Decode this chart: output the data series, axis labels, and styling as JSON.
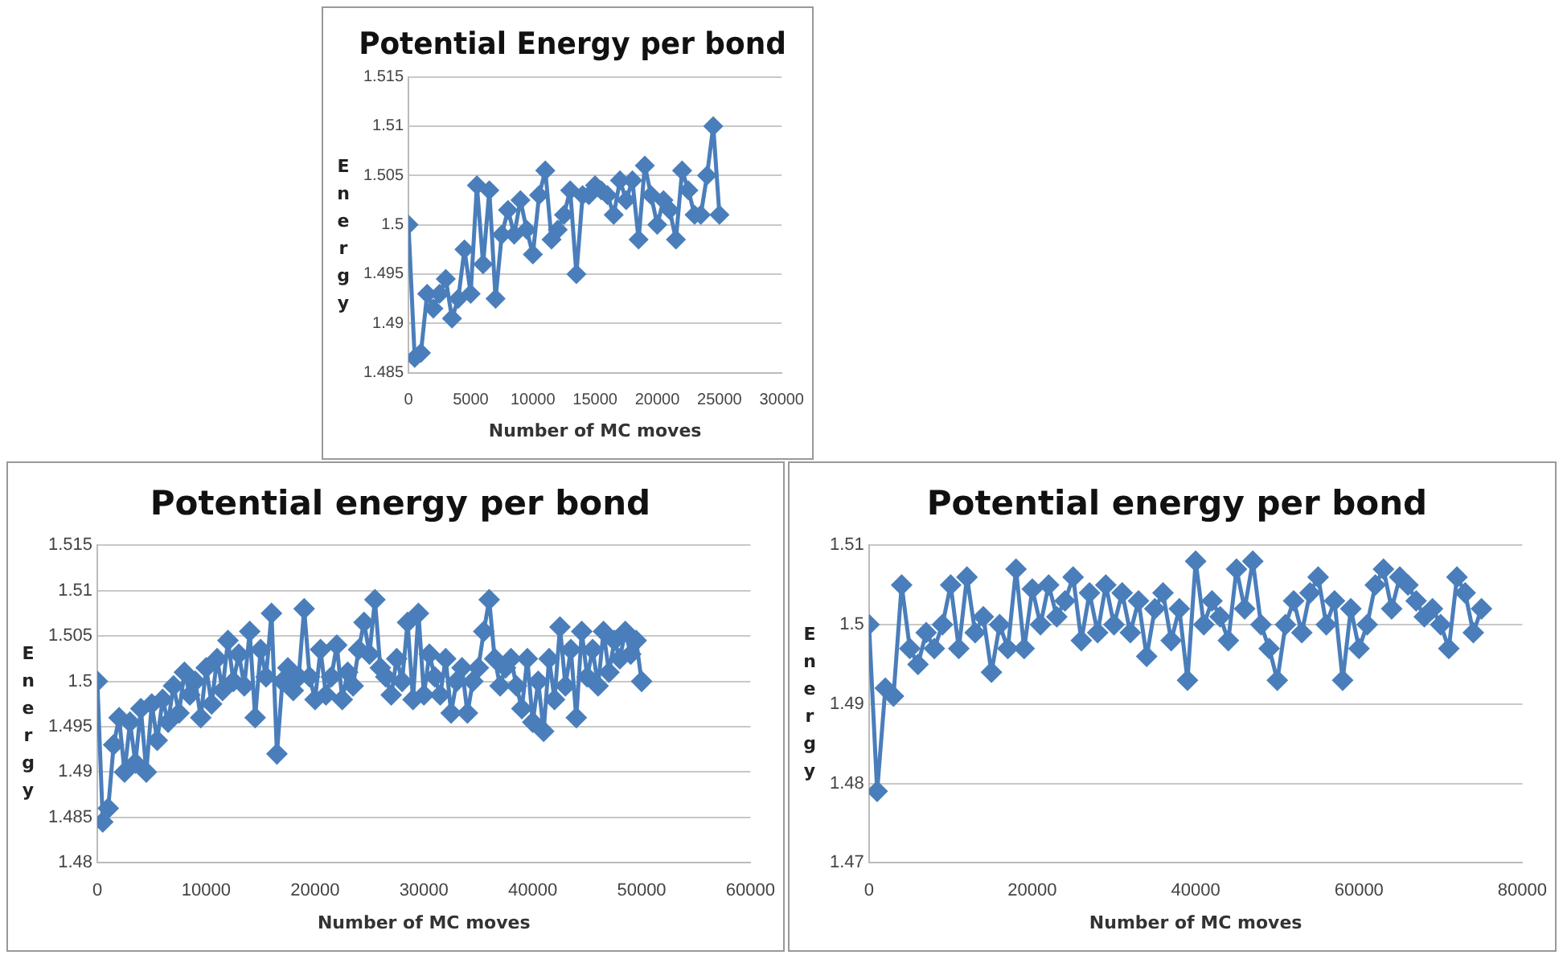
{
  "chart_data": [
    {
      "type": "line",
      "title": "Potential Energy per bond",
      "xlabel": "Number of MC moves",
      "ylabel": "Energy",
      "marker": "diamond",
      "grid": "y",
      "legend": false,
      "xlim": [
        0,
        30000
      ],
      "xticks": [
        0,
        5000,
        10000,
        15000,
        20000,
        25000,
        30000
      ],
      "ylim": [
        1.485,
        1.515
      ],
      "yticks": [
        1.485,
        1.49,
        1.495,
        1.5,
        1.505,
        1.51,
        1.515
      ],
      "x": [
        0,
        500,
        1000,
        1500,
        2000,
        2500,
        3000,
        3500,
        4000,
        4500,
        5000,
        5500,
        6000,
        6500,
        7000,
        7500,
        8000,
        8500,
        9000,
        9500,
        10000,
        10500,
        11000,
        11500,
        12000,
        12500,
        13000,
        13500,
        14000,
        14500,
        15000,
        15500,
        16000,
        16500,
        17000,
        17500,
        18000,
        18500,
        19000,
        19500,
        20000,
        20500,
        21000,
        21500,
        22000,
        22500,
        23000,
        23500,
        24000,
        24500,
        25000
      ],
      "series": [
        {
          "color": "#4a7ebb",
          "values": [
            1.5,
            1.4865,
            1.487,
            1.493,
            1.4915,
            1.493,
            1.4945,
            1.4905,
            1.4925,
            1.4975,
            1.493,
            1.504,
            1.496,
            1.5035,
            1.4925,
            1.499,
            1.5015,
            1.499,
            1.5025,
            1.4995,
            1.497,
            1.503,
            1.5055,
            1.4985,
            1.4995,
            1.501,
            1.5035,
            1.495,
            1.503,
            1.503,
            1.504,
            1.5035,
            1.503,
            1.501,
            1.5045,
            1.5025,
            1.5045,
            1.4985,
            1.506,
            1.503,
            1.5,
            1.5025,
            1.5015,
            1.4985,
            1.5055,
            1.5035,
            1.501,
            1.501,
            1.505,
            1.51,
            1.501
          ]
        }
      ]
    },
    {
      "type": "line",
      "title": "Potential energy per bond",
      "xlabel": "Number of MC moves",
      "ylabel": "Energy",
      "marker": "diamond",
      "grid": "y",
      "legend": false,
      "xlim": [
        0,
        60000
      ],
      "xticks": [
        0,
        10000,
        20000,
        30000,
        40000,
        50000,
        60000
      ],
      "ylim": [
        1.48,
        1.515
      ],
      "yticks": [
        1.48,
        1.485,
        1.49,
        1.495,
        1.5,
        1.505,
        1.51,
        1.515
      ],
      "x": [
        0,
        500,
        1000,
        1500,
        2000,
        2500,
        3000,
        3500,
        4000,
        4500,
        5000,
        5500,
        6000,
        6500,
        7000,
        7500,
        8000,
        8500,
        9000,
        9500,
        10000,
        10500,
        11000,
        11500,
        12000,
        12500,
        13000,
        13500,
        14000,
        14500,
        15000,
        15500,
        16000,
        16500,
        17000,
        17500,
        18000,
        18500,
        19000,
        19500,
        20000,
        20500,
        21000,
        21500,
        22000,
        22500,
        23000,
        23500,
        24000,
        24500,
        25000,
        25500,
        26000,
        26500,
        27000,
        27500,
        28000,
        28500,
        29000,
        29500,
        30000,
        30500,
        31000,
        31500,
        32000,
        32500,
        33000,
        33500,
        34000,
        34500,
        35000,
        35500,
        36000,
        36500,
        37000,
        37500,
        38000,
        38500,
        39000,
        39500,
        40000,
        40500,
        41000,
        41500,
        42000,
        42500,
        43000,
        43500,
        44000,
        44500,
        45000,
        45500,
        46000,
        46500,
        47000,
        47500,
        48000,
        48500,
        49000,
        49500,
        50000
      ],
      "series": [
        {
          "color": "#4a7ebb",
          "values": [
            1.5,
            1.4845,
            1.486,
            1.493,
            1.496,
            1.49,
            1.4955,
            1.491,
            1.497,
            1.49,
            1.4975,
            1.4935,
            1.498,
            1.4955,
            1.4995,
            1.4965,
            1.501,
            1.4985,
            1.5,
            1.496,
            1.5015,
            1.4975,
            1.5025,
            1.499,
            1.5045,
            1.5,
            1.503,
            1.4995,
            1.5055,
            1.496,
            1.5035,
            1.5005,
            1.5075,
            1.492,
            1.5,
            1.5015,
            1.499,
            1.5005,
            1.508,
            1.5005,
            1.498,
            1.5035,
            1.4985,
            1.5005,
            1.504,
            1.498,
            1.501,
            1.4995,
            1.5035,
            1.5065,
            1.503,
            1.509,
            1.5015,
            1.5005,
            1.4985,
            1.5025,
            1.5,
            1.5065,
            1.498,
            1.5075,
            1.4985,
            1.503,
            1.5005,
            1.4985,
            1.5025,
            1.4965,
            1.5,
            1.5015,
            1.4965,
            1.5,
            1.5015,
            1.5055,
            1.509,
            1.5025,
            1.4995,
            1.5015,
            1.5025,
            1.4995,
            1.497,
            1.5025,
            1.4955,
            1.5,
            1.4945,
            1.5025,
            1.498,
            1.506,
            1.4995,
            1.5035,
            1.496,
            1.5055,
            1.5005,
            1.5035,
            1.4995,
            1.5055,
            1.501,
            1.5045,
            1.5025,
            1.5055,
            1.503,
            1.5045,
            1.5
          ]
        }
      ]
    },
    {
      "type": "line",
      "title": "Potential energy per bond",
      "xlabel": "Number of MC moves",
      "ylabel": "Energy",
      "marker": "diamond",
      "grid": "y",
      "legend": false,
      "xlim": [
        0,
        80000
      ],
      "xticks": [
        0,
        20000,
        40000,
        60000,
        80000
      ],
      "ylim": [
        1.47,
        1.51
      ],
      "yticks": [
        1.47,
        1.48,
        1.49,
        1.5,
        1.51
      ],
      "x": [
        0,
        1000,
        2000,
        3000,
        4000,
        5000,
        6000,
        7000,
        8000,
        9000,
        10000,
        11000,
        12000,
        13000,
        14000,
        15000,
        16000,
        17000,
        18000,
        19000,
        20000,
        21000,
        22000,
        23000,
        24000,
        25000,
        26000,
        27000,
        28000,
        29000,
        30000,
        31000,
        32000,
        33000,
        34000,
        35000,
        36000,
        37000,
        38000,
        39000,
        40000,
        41000,
        42000,
        43000,
        44000,
        45000,
        46000,
        47000,
        48000,
        49000,
        50000,
        51000,
        52000,
        53000,
        54000,
        55000,
        56000,
        57000,
        58000,
        59000,
        60000,
        61000,
        62000,
        63000,
        64000,
        65000,
        66000,
        67000,
        68000,
        69000,
        70000,
        71000,
        72000,
        73000,
        74000,
        75000
      ],
      "series": [
        {
          "color": "#4a7ebb",
          "values": [
            1.5,
            1.479,
            1.492,
            1.491,
            1.505,
            1.497,
            1.495,
            1.499,
            1.497,
            1.5,
            1.505,
            1.497,
            1.506,
            1.499,
            1.501,
            1.494,
            1.5,
            1.497,
            1.507,
            1.497,
            1.5045,
            1.5,
            1.505,
            1.501,
            1.503,
            1.506,
            1.498,
            1.504,
            1.499,
            1.505,
            1.5,
            1.504,
            1.499,
            1.503,
            1.496,
            1.502,
            1.504,
            1.498,
            1.502,
            1.493,
            1.508,
            1.5,
            1.503,
            1.501,
            1.498,
            1.507,
            1.502,
            1.508,
            1.5,
            1.497,
            1.493,
            1.5,
            1.503,
            1.499,
            1.504,
            1.506,
            1.5,
            1.503,
            1.493,
            1.502,
            1.497,
            1.5,
            1.505,
            1.507,
            1.502,
            1.506,
            1.505,
            1.503,
            1.501,
            1.502,
            1.5,
            1.497,
            1.506,
            1.504,
            1.499,
            1.502
          ]
        }
      ]
    }
  ]
}
